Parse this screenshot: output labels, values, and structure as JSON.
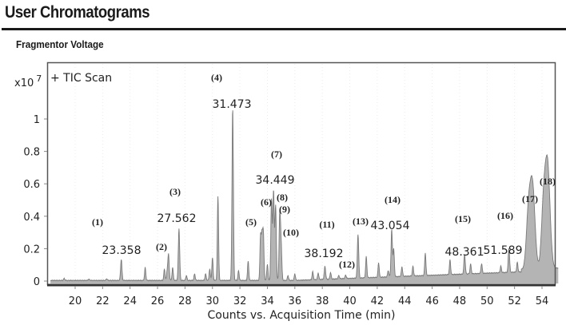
{
  "header": {
    "title": "User Chromatograms",
    "subtitle": "Fragmentor Voltage"
  },
  "chart_data": {
    "type": "line",
    "title": "User Chromatograms",
    "subtitle": "Fragmentor Voltage",
    "trace_label": "+ TIC Scan",
    "y_multiplier": "x10",
    "y_exponent": "7",
    "xlabel": "Counts vs. Acquisition Time (min)",
    "ylabel": "",
    "xlim": [
      18,
      55.3
    ],
    "ylim": [
      -0.01,
      1.2
    ],
    "x_ticks": [
      20,
      22,
      24,
      26,
      28,
      30,
      32,
      34,
      36,
      38,
      40,
      42,
      44,
      46,
      48,
      50,
      52,
      54
    ],
    "y_ticks": [
      0,
      0.2,
      0.4,
      0.6,
      0.8,
      1
    ],
    "y_tick_labels": [
      "0",
      "0.2",
      "0.4",
      "0.6",
      "0.8",
      "1"
    ],
    "grid": true,
    "peaks": [
      {
        "id": "(1)",
        "rt": 23.358,
        "height": 0.13,
        "rt_label": "23.358"
      },
      {
        "id": "(2)",
        "rt": 26.8,
        "height": 0.16,
        "rt_label": ""
      },
      {
        "id": "(3)",
        "rt": 27.562,
        "height": 0.32,
        "rt_label": "27.562"
      },
      {
        "id": "(4)",
        "rt": 31.473,
        "height": 1.06,
        "rt_label": "31.473"
      },
      {
        "id": "(5)",
        "rt": 33.7,
        "height": 0.3,
        "rt_label": ""
      },
      {
        "id": "(6)",
        "rt": 34.3,
        "height": 0.5,
        "rt_label": ""
      },
      {
        "id": "(7)",
        "rt": 34.449,
        "height": 0.55,
        "rt_label": "34.449"
      },
      {
        "id": "(8)",
        "rt": 34.6,
        "height": 0.46,
        "rt_label": ""
      },
      {
        "id": "(9)",
        "rt": 34.9,
        "height": 0.4,
        "rt_label": ""
      },
      {
        "id": "(10)",
        "rt": 35.0,
        "height": 0.22,
        "rt_label": ""
      },
      {
        "id": "(11)",
        "rt": 38.192,
        "height": 0.08,
        "rt_label": "38.192"
      },
      {
        "id": "(12)",
        "rt": 39.7,
        "height": 0.02,
        "rt_label": ""
      },
      {
        "id": "(13)",
        "rt": 40.6,
        "height": 0.27,
        "rt_label": ""
      },
      {
        "id": "(14)",
        "rt": 43.054,
        "height": 0.29,
        "rt_label": "43.054"
      },
      {
        "id": "(15)",
        "rt": 48.361,
        "height": 0.12,
        "rt_label": "48.361"
      },
      {
        "id": "(16)",
        "rt": 51.589,
        "height": 0.15,
        "rt_label": "51.589"
      },
      {
        "id": "(17)",
        "rt": 53.3,
        "height": 0.52,
        "rt_label": ""
      },
      {
        "id": "(18)",
        "rt": 54.4,
        "height": 0.64,
        "rt_label": ""
      }
    ],
    "minor_peaks": [
      [
        19.2,
        0.012
      ],
      [
        21.0,
        0.008
      ],
      [
        22.3,
        0.01
      ],
      [
        25.1,
        0.08
      ],
      [
        26.5,
        0.07
      ],
      [
        26.7,
        0.05
      ],
      [
        27.1,
        0.08
      ],
      [
        28.1,
        0.03
      ],
      [
        28.7,
        0.04
      ],
      [
        29.5,
        0.04
      ],
      [
        29.8,
        0.07
      ],
      [
        30.4,
        0.52
      ],
      [
        30.0,
        0.14
      ],
      [
        31.9,
        0.06
      ],
      [
        32.6,
        0.12
      ],
      [
        33.5,
        0.27
      ],
      [
        33.6,
        0.25
      ],
      [
        34.0,
        0.1
      ],
      [
        35.5,
        0.03
      ],
      [
        36.0,
        0.04
      ],
      [
        37.3,
        0.05
      ],
      [
        37.7,
        0.04
      ],
      [
        38.6,
        0.04
      ],
      [
        39.2,
        0.02
      ],
      [
        41.2,
        0.13
      ],
      [
        42.1,
        0.09
      ],
      [
        42.8,
        0.04
      ],
      [
        43.2,
        0.17
      ],
      [
        43.8,
        0.06
      ],
      [
        44.6,
        0.06
      ],
      [
        45.5,
        0.14
      ],
      [
        47.3,
        0.09
      ],
      [
        48.8,
        0.06
      ],
      [
        49.6,
        0.06
      ],
      [
        51.0,
        0.04
      ],
      [
        52.2,
        0.06
      ],
      [
        53.0,
        0.3
      ],
      [
        54.1,
        0.34
      ]
    ]
  }
}
